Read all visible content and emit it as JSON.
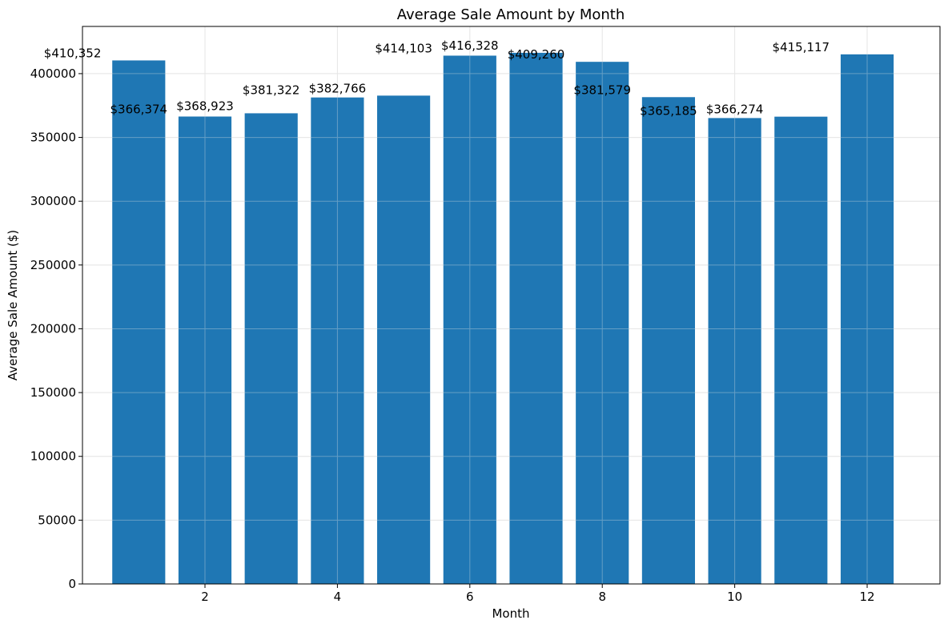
{
  "chart_data": {
    "type": "bar",
    "title": "Average Sale Amount by Month",
    "xlabel": "Month",
    "ylabel": "Average Sale Amount ($)",
    "categories": [
      1,
      2,
      3,
      4,
      5,
      6,
      7,
      8,
      9,
      10,
      11,
      12
    ],
    "values": [
      410352,
      366374,
      368923,
      381322,
      382766,
      414103,
      416328,
      409260,
      381579,
      365185,
      366274,
      415117
    ],
    "data_labels": [
      "$410,352",
      "$366,374",
      "$368,923",
      "$381,322",
      "$382,766",
      "$414,103",
      "$416,328",
      "$409,260",
      "$381,579",
      "$365,185",
      "$366,274",
      "$415,117"
    ],
    "x_ticks": [
      2,
      4,
      6,
      8,
      10,
      12
    ],
    "y_ticks": [
      0,
      50000,
      100000,
      150000,
      200000,
      250000,
      300000,
      350000,
      400000
    ],
    "xlim": [
      0.15,
      13.1
    ],
    "ylim": [
      0,
      437000
    ],
    "grid": true,
    "bar_color": "#1f77b4",
    "grid_color": "#e6e6e6"
  }
}
